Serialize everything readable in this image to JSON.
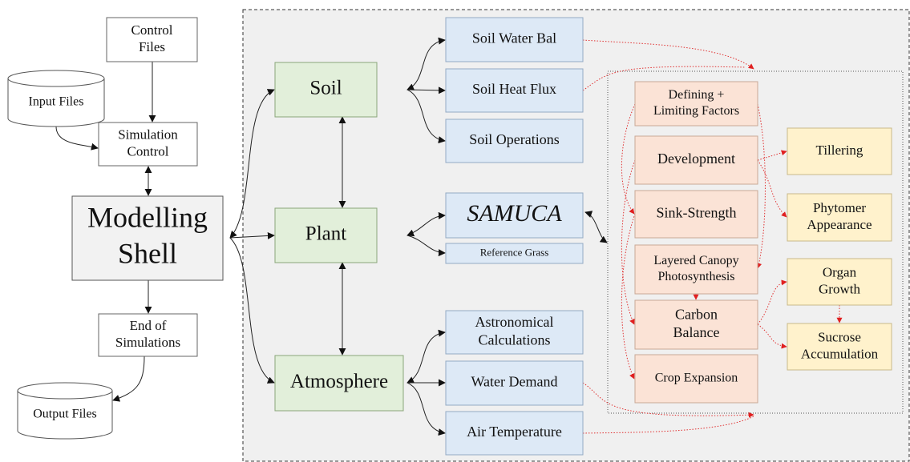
{
  "nodes": [
    {
      "label": [
        "Control",
        "Files"
      ]
    },
    {
      "label": [
        "Input Files"
      ]
    },
    {
      "label": [
        "Simulation",
        "Control"
      ]
    },
    {
      "label": [
        "Modelling",
        "Shell"
      ]
    },
    {
      "label": [
        "End of",
        "Simulations"
      ]
    },
    {
      "label": [
        "Output Files"
      ]
    },
    {
      "label": [
        "Soil"
      ]
    },
    {
      "label": [
        "Plant"
      ]
    },
    {
      "label": [
        "Atmosphere"
      ]
    },
    {
      "label": [
        "Soil Water Bal"
      ]
    },
    {
      "label": [
        "Soil Heat Flux"
      ]
    },
    {
      "label": [
        "Soil Operations"
      ]
    },
    {
      "label": [
        "SAMUCA"
      ]
    },
    {
      "label": [
        "Reference Grass"
      ]
    },
    {
      "label": [
        "Astronomical",
        "Calculations"
      ]
    },
    {
      "label": [
        "Water Demand"
      ]
    },
    {
      "label": [
        "Air Temperature"
      ]
    },
    {
      "label": [
        "Defining +",
        "Limiting Factors"
      ]
    },
    {
      "label": [
        "Development"
      ]
    },
    {
      "label": [
        "Sink-Strength"
      ]
    },
    {
      "label": [
        "Layered Canopy",
        "Photosynthesis"
      ]
    },
    {
      "label": [
        "Carbon",
        "Balance"
      ]
    },
    {
      "label": [
        "Crop Expansion"
      ]
    },
    {
      "label": [
        "Tillering"
      ]
    },
    {
      "label": [
        "Phytomer",
        "Appearance"
      ]
    },
    {
      "label": [
        "Organ",
        "Growth"
      ]
    },
    {
      "label": [
        "Sucrose",
        "Accumulation"
      ]
    }
  ]
}
